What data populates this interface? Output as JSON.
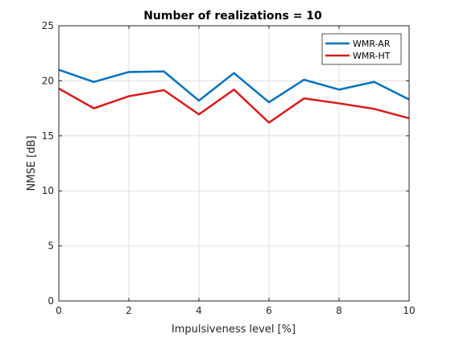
{
  "chart_data": {
    "type": "line",
    "title": "Number of realizations = 10",
    "xlabel": "Impulsiveness level [%]",
    "ylabel": "NMSE [dB]",
    "xlim": [
      0,
      10
    ],
    "ylim": [
      0,
      25
    ],
    "xticks": [
      0,
      2,
      4,
      6,
      8,
      10
    ],
    "yticks": [
      0,
      5,
      10,
      15,
      20,
      25
    ],
    "grid": true,
    "legend_position": "top-right",
    "x": [
      0,
      1,
      2,
      3,
      4,
      5,
      6,
      7,
      8,
      9,
      10
    ],
    "series": [
      {
        "name": "WMR-AR",
        "color": "#0072bd",
        "values": [
          21.0,
          19.9,
          20.8,
          20.85,
          18.2,
          20.7,
          18.05,
          20.1,
          19.2,
          19.9,
          18.3
        ]
      },
      {
        "name": "WMR-HT",
        "color": "#d91a1a",
        "values": [
          19.3,
          17.5,
          18.6,
          19.15,
          16.95,
          19.2,
          16.2,
          18.4,
          17.95,
          17.45,
          16.6
        ]
      }
    ]
  }
}
